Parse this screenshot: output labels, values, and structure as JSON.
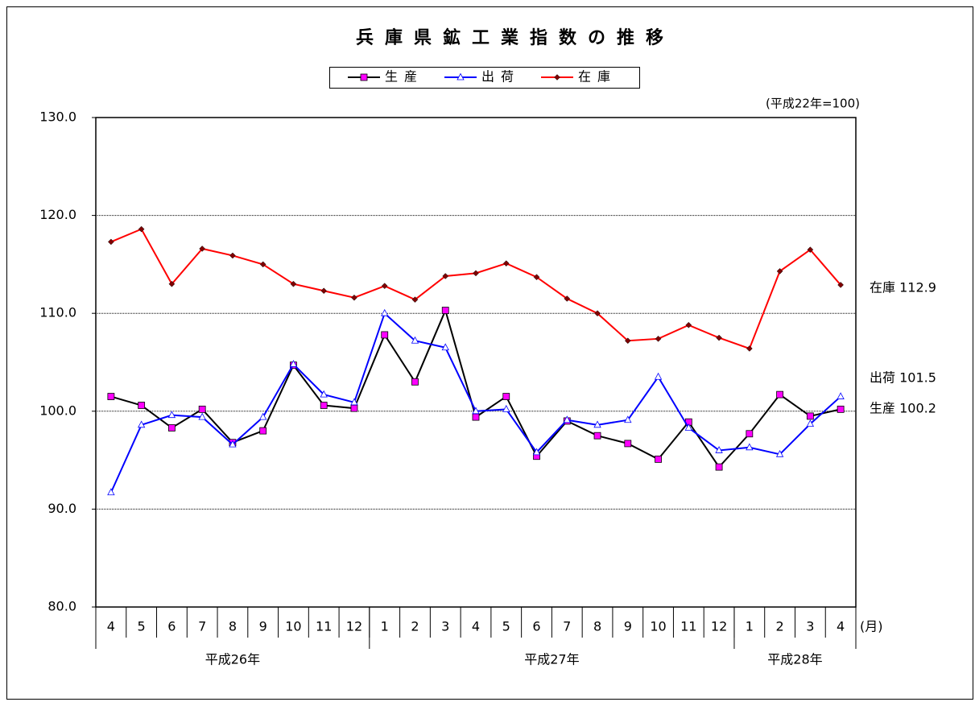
{
  "chart_data": {
    "type": "line",
    "title": "兵庫県鉱工業指数の推移",
    "note": "(平成22年=100)",
    "x_unit": "(月)",
    "groups": [
      {
        "label": "平成26年",
        "categories": [
          "4",
          "5",
          "6",
          "7",
          "8",
          "9",
          "10",
          "11",
          "12"
        ]
      },
      {
        "label": "平成27年",
        "categories": [
          "1",
          "2",
          "3",
          "4",
          "5",
          "6",
          "7",
          "8",
          "9",
          "10",
          "11",
          "12"
        ]
      },
      {
        "label": "平成28年",
        "categories": [
          "1",
          "2",
          "3",
          "4"
        ]
      }
    ],
    "series": [
      {
        "name": "生産",
        "color": "#000000",
        "marker": "square",
        "marker_color": "#ff00ff",
        "values": [
          101.5,
          100.6,
          98.3,
          100.2,
          96.8,
          98.0,
          104.7,
          100.6,
          100.3,
          107.8,
          103.0,
          110.3,
          99.4,
          101.5,
          95.4,
          99.0,
          97.5,
          96.7,
          95.1,
          98.9,
          94.3,
          97.7,
          101.7,
          99.5,
          100.2
        ]
      },
      {
        "name": "出荷",
        "color": "#0000ff",
        "marker": "triangle",
        "marker_color": "#ffffff",
        "values": [
          91.7,
          98.6,
          99.6,
          99.4,
          96.6,
          99.4,
          104.8,
          101.7,
          100.9,
          110.0,
          107.2,
          106.5,
          100.0,
          100.2,
          95.8,
          99.1,
          98.6,
          99.1,
          103.5,
          98.3,
          96.0,
          96.3,
          95.6,
          98.7,
          101.5
        ]
      },
      {
        "name": "在庫",
        "color": "#ff0000",
        "marker": "diamond",
        "marker_color": "#800000",
        "values": [
          117.3,
          118.6,
          113.0,
          116.6,
          115.9,
          115.0,
          113.0,
          112.3,
          111.6,
          112.8,
          111.4,
          113.8,
          114.1,
          115.1,
          113.7,
          111.5,
          110.0,
          107.2,
          107.4,
          108.8,
          107.5,
          106.4,
          114.3,
          116.5,
          112.9
        ]
      }
    ],
    "annotations": [
      "在庫 112.9",
      "出荷 101.5",
      "生産 100.2"
    ],
    "ylim": [
      80,
      130
    ],
    "yticks": [
      {
        "value": 80,
        "label": "80.0"
      },
      {
        "value": 90,
        "label": "90.0"
      },
      {
        "value": 100,
        "label": "100.0"
      },
      {
        "value": 110,
        "label": "110.0"
      },
      {
        "value": 120,
        "label": "120.0"
      },
      {
        "value": 130,
        "label": "130.0"
      }
    ],
    "grid": true
  }
}
